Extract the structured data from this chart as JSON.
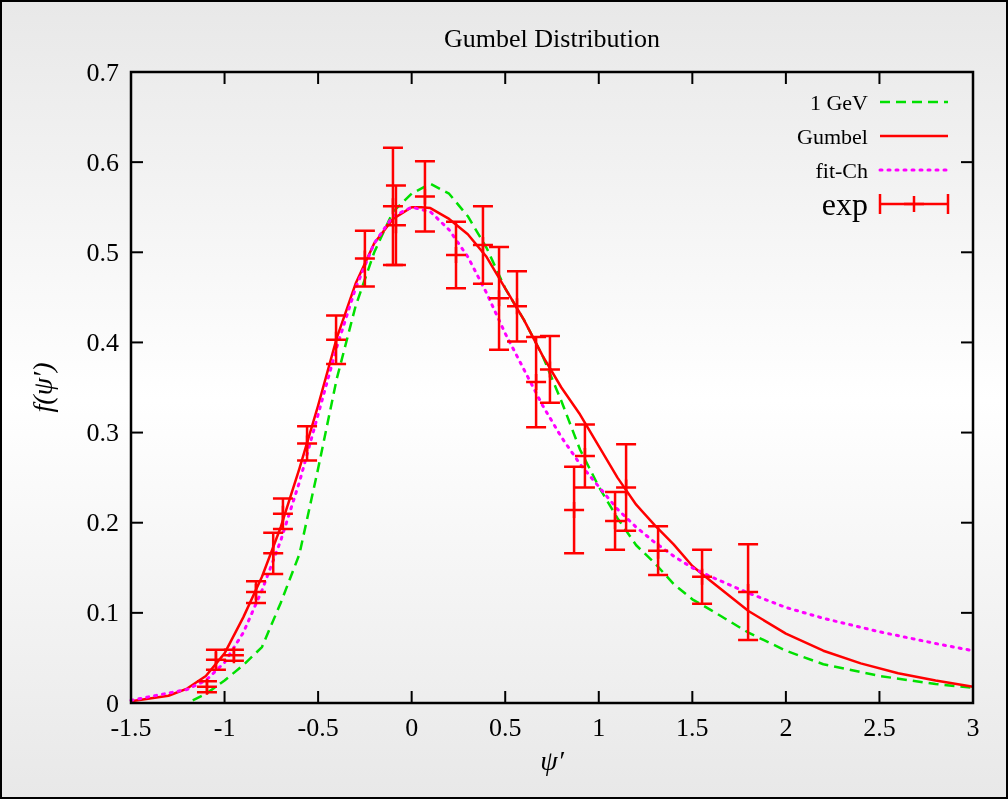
{
  "chart_data": {
    "type": "line",
    "title": "Gumbel Distribution",
    "xlabel": "ψ′",
    "ylabel": "f(ψ′)",
    "xlim": [
      -1.5,
      3
    ],
    "ylim": [
      0,
      0.7
    ],
    "xticks": [
      -1.5,
      -1,
      -0.5,
      0,
      0.5,
      1,
      1.5,
      2,
      2.5,
      3
    ],
    "yticks": [
      0,
      0.1,
      0.2,
      0.3,
      0.4,
      0.5,
      0.6,
      0.7
    ],
    "grid": false,
    "legend": "top right",
    "series": [
      {
        "name": "1 GeV",
        "color": "#00e000",
        "line_style": "dashed",
        "x": [
          -1.17,
          -1.1,
          -1.0,
          -0.9,
          -0.8,
          -0.7,
          -0.6,
          -0.5,
          -0.4,
          -0.3,
          -0.2,
          -0.1,
          0,
          0.1,
          0.2,
          0.3,
          0.4,
          0.5,
          0.6,
          0.7,
          0.8,
          0.9,
          1.0,
          1.1,
          1.2,
          1.3,
          1.4,
          1.5,
          1.6,
          1.8,
          2.0,
          2.2,
          2.5,
          2.8,
          3.0
        ],
        "values": [
          0.003,
          0.01,
          0.025,
          0.042,
          0.062,
          0.111,
          0.165,
          0.26,
          0.36,
          0.44,
          0.5,
          0.545,
          0.565,
          0.576,
          0.565,
          0.54,
          0.505,
          0.46,
          0.425,
          0.385,
          0.335,
          0.281,
          0.24,
          0.205,
          0.175,
          0.155,
          0.132,
          0.115,
          0.103,
          0.078,
          0.058,
          0.043,
          0.03,
          0.021,
          0.017
        ]
      },
      {
        "name": "Gumbel",
        "color": "#ff0000",
        "line_style": "solid",
        "x": [
          -1.5,
          -1.3,
          -1.2,
          -1.1,
          -1.0,
          -0.9,
          -0.8,
          -0.7,
          -0.6,
          -0.5,
          -0.4,
          -0.3,
          -0.2,
          -0.1,
          0,
          0.05,
          0.1,
          0.2,
          0.3,
          0.4,
          0.5,
          0.6,
          0.7,
          0.8,
          0.9,
          1.0,
          1.1,
          1.2,
          1.3,
          1.4,
          1.5,
          1.6,
          1.8,
          2.0,
          2.2,
          2.4,
          2.6,
          2.8,
          3.0
        ],
        "values": [
          0.002,
          0.008,
          0.016,
          0.03,
          0.055,
          0.095,
          0.14,
          0.195,
          0.26,
          0.33,
          0.405,
          0.465,
          0.51,
          0.537,
          0.55,
          0.55,
          0.549,
          0.537,
          0.52,
          0.495,
          0.46,
          0.425,
          0.385,
          0.35,
          0.32,
          0.285,
          0.25,
          0.22,
          0.197,
          0.176,
          0.152,
          0.135,
          0.102,
          0.077,
          0.058,
          0.044,
          0.033,
          0.025,
          0.018
        ]
      },
      {
        "name": "fit-Ch",
        "color": "#ff00ff",
        "line_style": "dotted",
        "x": [
          -1.5,
          -1.2,
          -1.1,
          -1.0,
          -0.9,
          -0.8,
          -0.7,
          -0.6,
          -0.5,
          -0.4,
          -0.3,
          -0.2,
          -0.1,
          0,
          0.1,
          0.2,
          0.3,
          0.4,
          0.5,
          0.6,
          0.7,
          0.8,
          0.9,
          1.0,
          1.1,
          1.2,
          1.3,
          1.4,
          1.5,
          1.6,
          1.8,
          2.0,
          2.2,
          2.5,
          2.8,
          3.0
        ],
        "values": [
          0.003,
          0.015,
          0.025,
          0.045,
          0.078,
          0.125,
          0.18,
          0.245,
          0.32,
          0.395,
          0.46,
          0.51,
          0.54,
          0.55,
          0.545,
          0.525,
          0.495,
          0.455,
          0.41,
          0.37,
          0.33,
          0.295,
          0.265,
          0.24,
          0.215,
          0.195,
          0.178,
          0.163,
          0.15,
          0.14,
          0.122,
          0.106,
          0.094,
          0.079,
          0.066,
          0.058
        ]
      },
      {
        "name": "exp",
        "type": "scatter",
        "marker": "cross",
        "color": "#ff0000",
        "x": [
          -1.094,
          -1.046,
          -0.95,
          -0.832,
          -0.74,
          -0.688,
          -0.559,
          -0.404,
          -0.25,
          -0.1,
          -0.084,
          0.071,
          0.237,
          0.381,
          0.467,
          0.563,
          0.665,
          0.739,
          0.868,
          0.926,
          1.087,
          1.146,
          1.317,
          1.552,
          1.798
        ],
        "values": [
          0.018,
          0.048,
          0.053,
          0.123,
          0.166,
          0.21,
          0.288,
          0.403,
          0.493,
          0.551,
          0.53,
          0.562,
          0.497,
          0.508,
          0.449,
          0.44,
          0.356,
          0.37,
          0.214,
          0.274,
          0.202,
          0.239,
          0.169,
          0.14,
          0.123
        ],
        "errors": [
          0.006,
          0.011,
          0.006,
          0.012,
          0.023,
          0.017,
          0.019,
          0.027,
          0.031,
          0.065,
          0.044,
          0.039,
          0.037,
          0.043,
          0.057,
          0.039,
          0.05,
          0.037,
          0.048,
          0.035,
          0.032,
          0.048,
          0.027,
          0.03,
          0.053
        ]
      }
    ]
  }
}
